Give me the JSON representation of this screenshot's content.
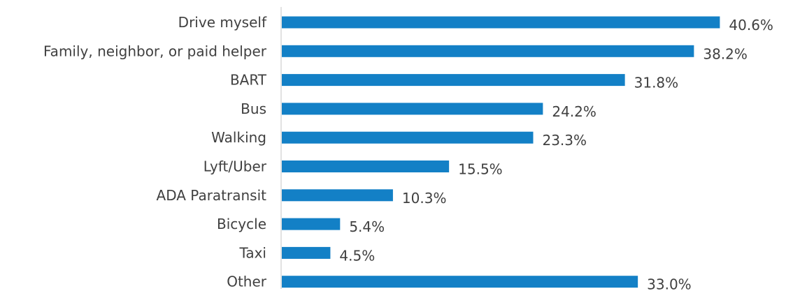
{
  "chart_data": {
    "type": "bar",
    "orientation": "horizontal",
    "title": "",
    "xlabel": "",
    "ylabel": "",
    "categories": [
      "Drive myself",
      "Family, neighbor, or paid helper",
      "BART",
      "Bus",
      "Walking",
      "Lyft/Uber",
      "ADA Paratransit",
      "Bicycle",
      "Taxi",
      "Other"
    ],
    "values": [
      40.6,
      38.2,
      31.8,
      24.2,
      23.3,
      15.5,
      10.3,
      5.4,
      4.5,
      33.0
    ],
    "value_labels": [
      "40.6%",
      "38.2%",
      "31.8%",
      "24.2%",
      "23.3%",
      "15.5%",
      "10.3%",
      "5.4%",
      "4.5%",
      "33.0%"
    ],
    "unit": "%",
    "xlim": [
      0,
      42
    ],
    "grid": false,
    "legend": "none",
    "bar_color": "#1380C6",
    "axis_color": "#D9D9D9",
    "text_color": "#404040"
  }
}
